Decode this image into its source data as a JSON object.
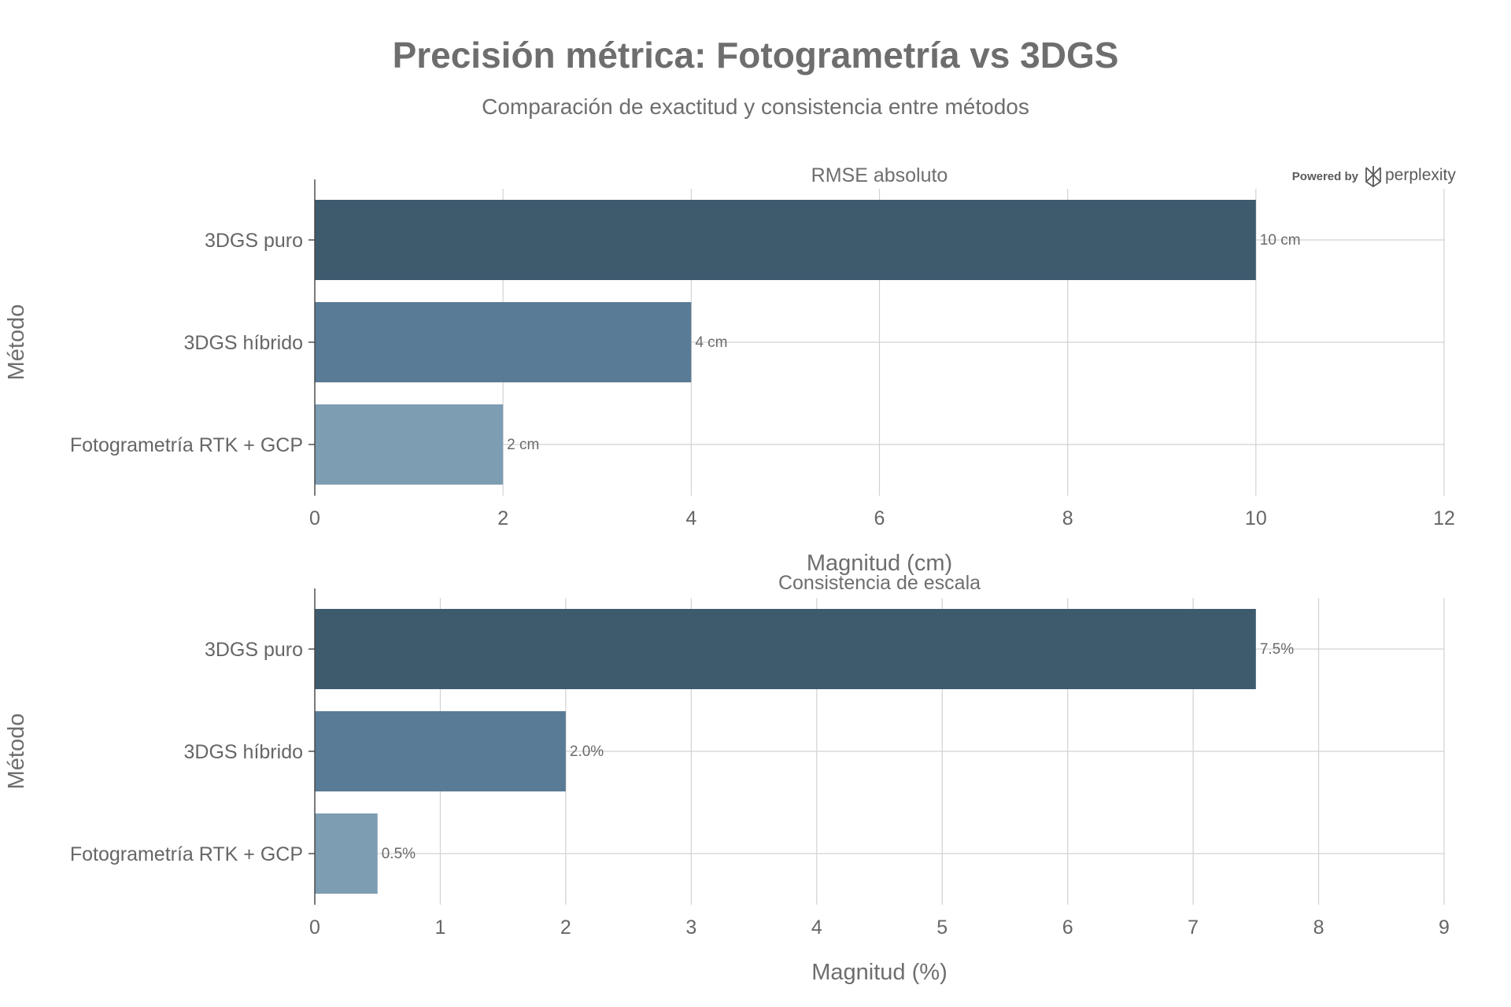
{
  "header": {
    "title": "Precisión métrica: Fotogrametría vs 3DGS",
    "subtitle": "Comparación de exactitud y consistencia entre métodos"
  },
  "branding": {
    "powered_by": "Powered by",
    "name": "perplexity"
  },
  "colors": {
    "series": [
      "#3e5b6e",
      "#5a7b96",
      "#7d9db3"
    ]
  },
  "chart_data": [
    {
      "type": "bar",
      "orientation": "horizontal",
      "title": "RMSE absoluto",
      "categories": [
        "3DGS puro",
        "3DGS híbrido",
        "Fotogrametría RTK + GCP"
      ],
      "values": [
        10,
        4,
        2
      ],
      "data_labels": [
        "10 cm",
        "4 cm",
        "2 cm"
      ],
      "xlabel": "Magnitud (cm)",
      "ylabel": "Método",
      "xlim": [
        0,
        12
      ],
      "xticks": [
        0,
        2,
        4,
        6,
        8,
        10,
        12
      ],
      "grid": true
    },
    {
      "type": "bar",
      "orientation": "horizontal",
      "title": "Consistencia de escala",
      "categories": [
        "3DGS puro",
        "3DGS híbrido",
        "Fotogrametría RTK + GCP"
      ],
      "values": [
        7.5,
        2.0,
        0.5
      ],
      "data_labels": [
        "7.5%",
        "2.0%",
        "0.5%"
      ],
      "xlabel": "Magnitud (%)",
      "ylabel": "Método",
      "xlim": [
        0,
        9
      ],
      "xticks": [
        0,
        1,
        2,
        3,
        4,
        5,
        6,
        7,
        8,
        9
      ],
      "grid": true
    }
  ]
}
